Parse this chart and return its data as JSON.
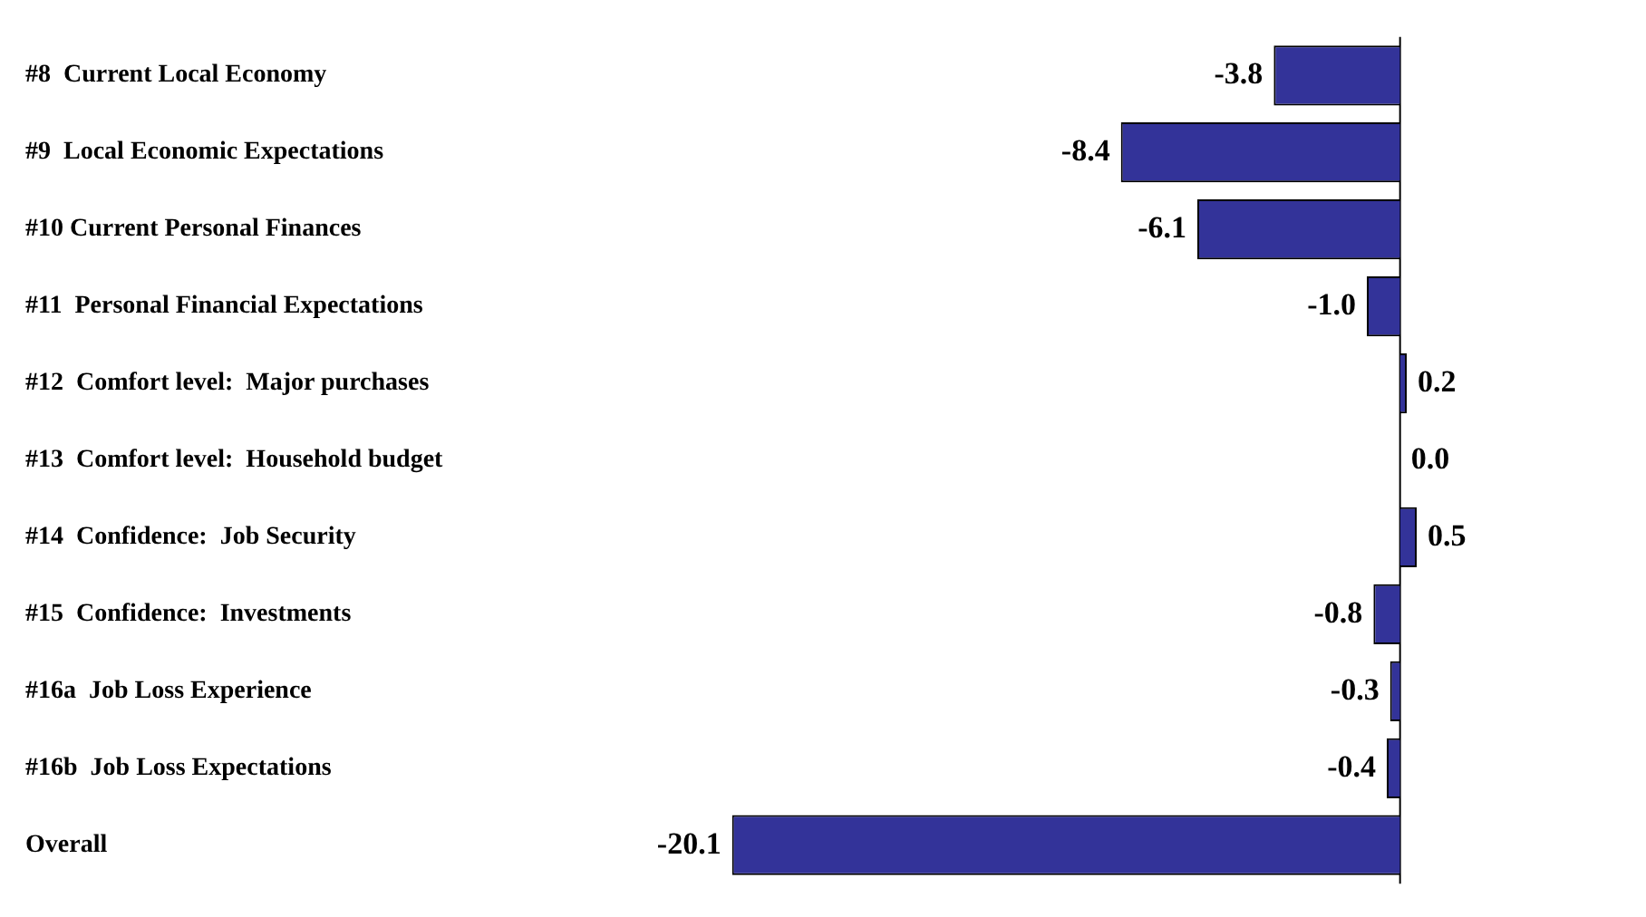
{
  "chart_data": {
    "type": "bar",
    "orientation": "horizontal",
    "categories": [
      "#8  Current Local Economy",
      "#9  Local Economic Expectations",
      "#10 Current Personal Finances",
      "#11  Personal Financial Expectations",
      "#12  Comfort level:  Major purchases",
      "#13  Comfort level:  Household budget",
      "#14  Confidence:  Job Security",
      "#15  Confidence:  Investments",
      "#16a  Job Loss Experience",
      "#16b  Job Loss Expectations",
      "Overall"
    ],
    "values": [
      -3.8,
      -8.4,
      -6.1,
      -1.0,
      0.2,
      0.0,
      0.5,
      -0.8,
      -0.3,
      -0.4,
      -20.1
    ],
    "color": "#333399",
    "value_labels": [
      "-3.8",
      "-8.4",
      "-6.1",
      "-1.0",
      "0.2",
      "0.0",
      "0.5",
      "-0.8",
      "-0.3",
      "-0.4",
      "-20.1"
    ],
    "tick_labels": "y",
    "grid": false,
    "legend": false,
    "ref_lines": [
      {
        "axis": "x",
        "value": 0,
        "color": "#000000"
      }
    ]
  }
}
